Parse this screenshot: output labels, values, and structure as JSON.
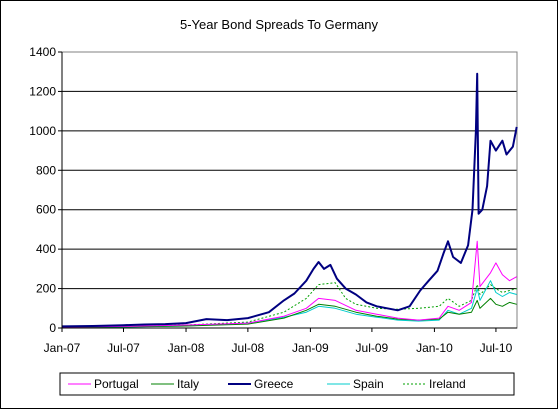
{
  "chart_data": {
    "type": "line",
    "title": "5-Year Bond Spreads To Germany",
    "xlabel": "",
    "ylabel": "",
    "ylim": [
      0,
      1400
    ],
    "yticks": [
      0,
      200,
      400,
      600,
      800,
      1000,
      1200,
      1400
    ],
    "xlim": [
      "2007-01-01",
      "2010-09-01"
    ],
    "xticks": [
      {
        "date": "2007-01-01",
        "label": "Jan-07"
      },
      {
        "date": "2007-07-01",
        "label": "Jul-07"
      },
      {
        "date": "2008-01-01",
        "label": "Jan-08"
      },
      {
        "date": "2008-07-01",
        "label": "Jul-08"
      },
      {
        "date": "2009-01-01",
        "label": "Jan-09"
      },
      {
        "date": "2009-07-01",
        "label": "Jul-09"
      },
      {
        "date": "2010-01-01",
        "label": "Jan-10"
      },
      {
        "date": "2010-07-01",
        "label": "Jul-10"
      }
    ],
    "grid": "horizontal",
    "legend": "bottom",
    "series": [
      {
        "name": "Greece",
        "color": "#000080",
        "dash": "solid",
        "width": 2,
        "points": [
          [
            "2007-01-01",
            8
          ],
          [
            "2007-04-01",
            10
          ],
          [
            "2007-07-01",
            14
          ],
          [
            "2007-09-01",
            18
          ],
          [
            "2007-11-01",
            20
          ],
          [
            "2008-01-01",
            25
          ],
          [
            "2008-03-01",
            45
          ],
          [
            "2008-05-01",
            40
          ],
          [
            "2008-07-01",
            50
          ],
          [
            "2008-09-01",
            80
          ],
          [
            "2008-10-15",
            140
          ],
          [
            "2008-11-15",
            175
          ],
          [
            "2008-12-20",
            240
          ],
          [
            "2009-01-10",
            300
          ],
          [
            "2009-01-25",
            335
          ],
          [
            "2009-02-10",
            300
          ],
          [
            "2009-03-01",
            320
          ],
          [
            "2009-03-20",
            250
          ],
          [
            "2009-04-15",
            200
          ],
          [
            "2009-05-15",
            170
          ],
          [
            "2009-06-15",
            130
          ],
          [
            "2009-07-15",
            110
          ],
          [
            "2009-08-15",
            100
          ],
          [
            "2009-09-15",
            90
          ],
          [
            "2009-10-20",
            110
          ],
          [
            "2009-11-20",
            190
          ],
          [
            "2009-12-15",
            240
          ],
          [
            "2010-01-10",
            290
          ],
          [
            "2010-01-28",
            380
          ],
          [
            "2010-02-10",
            440
          ],
          [
            "2010-02-25",
            360
          ],
          [
            "2010-03-20",
            330
          ],
          [
            "2010-04-10",
            420
          ],
          [
            "2010-04-23",
            600
          ],
          [
            "2010-05-03",
            1000
          ],
          [
            "2010-05-07",
            1290
          ],
          [
            "2010-05-11",
            580
          ],
          [
            "2010-05-22",
            600
          ],
          [
            "2010-06-05",
            720
          ],
          [
            "2010-06-15",
            950
          ],
          [
            "2010-07-01",
            900
          ],
          [
            "2010-07-20",
            950
          ],
          [
            "2010-08-01",
            880
          ],
          [
            "2010-08-20",
            920
          ],
          [
            "2010-08-31",
            1020
          ]
        ]
      },
      {
        "name": "Portugal",
        "color": "#ff00ff",
        "dash": "solid",
        "width": 1,
        "points": [
          [
            "2007-01-01",
            5
          ],
          [
            "2007-07-01",
            8
          ],
          [
            "2008-01-01",
            15
          ],
          [
            "2008-07-01",
            25
          ],
          [
            "2008-10-15",
            60
          ],
          [
            "2008-12-20",
            100
          ],
          [
            "2009-01-25",
            150
          ],
          [
            "2009-03-15",
            140
          ],
          [
            "2009-05-15",
            90
          ],
          [
            "2009-07-15",
            70
          ],
          [
            "2009-09-15",
            50
          ],
          [
            "2009-11-15",
            40
          ],
          [
            "2010-01-15",
            50
          ],
          [
            "2010-02-10",
            110
          ],
          [
            "2010-03-15",
            90
          ],
          [
            "2010-04-20",
            130
          ],
          [
            "2010-05-07",
            440
          ],
          [
            "2010-05-15",
            210
          ],
          [
            "2010-06-15",
            280
          ],
          [
            "2010-07-01",
            330
          ],
          [
            "2010-07-20",
            270
          ],
          [
            "2010-08-10",
            240
          ],
          [
            "2010-08-31",
            260
          ]
        ]
      },
      {
        "name": "Italy",
        "color": "#008000",
        "dash": "solid",
        "width": 1,
        "points": [
          [
            "2007-01-01",
            5
          ],
          [
            "2007-07-01",
            6
          ],
          [
            "2008-01-01",
            10
          ],
          [
            "2008-07-01",
            20
          ],
          [
            "2008-10-15",
            50
          ],
          [
            "2008-12-20",
            90
          ],
          [
            "2009-01-25",
            120
          ],
          [
            "2009-03-15",
            110
          ],
          [
            "2009-05-15",
            80
          ],
          [
            "2009-07-15",
            60
          ],
          [
            "2009-09-15",
            45
          ],
          [
            "2009-11-15",
            40
          ],
          [
            "2010-01-15",
            45
          ],
          [
            "2010-02-10",
            80
          ],
          [
            "2010-03-15",
            70
          ],
          [
            "2010-04-20",
            80
          ],
          [
            "2010-05-07",
            140
          ],
          [
            "2010-05-15",
            100
          ],
          [
            "2010-06-15",
            150
          ],
          [
            "2010-07-01",
            120
          ],
          [
            "2010-07-20",
            110
          ],
          [
            "2010-08-10",
            130
          ],
          [
            "2010-08-31",
            120
          ]
        ]
      },
      {
        "name": "Spain",
        "color": "#00cccc",
        "dash": "solid",
        "width": 1,
        "points": [
          [
            "2007-01-01",
            3
          ],
          [
            "2007-07-01",
            5
          ],
          [
            "2008-01-01",
            10
          ],
          [
            "2008-07-01",
            25
          ],
          [
            "2008-10-15",
            55
          ],
          [
            "2008-12-20",
            80
          ],
          [
            "2009-01-25",
            110
          ],
          [
            "2009-03-15",
            100
          ],
          [
            "2009-05-15",
            70
          ],
          [
            "2009-07-15",
            55
          ],
          [
            "2009-09-15",
            40
          ],
          [
            "2009-11-15",
            35
          ],
          [
            "2010-01-15",
            40
          ],
          [
            "2010-02-10",
            90
          ],
          [
            "2010-03-15",
            70
          ],
          [
            "2010-04-20",
            100
          ],
          [
            "2010-05-07",
            200
          ],
          [
            "2010-05-15",
            140
          ],
          [
            "2010-06-15",
            240
          ],
          [
            "2010-07-01",
            180
          ],
          [
            "2010-07-20",
            160
          ],
          [
            "2010-08-10",
            180
          ],
          [
            "2010-08-31",
            170
          ]
        ]
      },
      {
        "name": "Ireland",
        "color": "#00a000",
        "dash": "dotted",
        "width": 1,
        "points": [
          [
            "2007-01-01",
            3
          ],
          [
            "2007-07-01",
            6
          ],
          [
            "2008-01-01",
            15
          ],
          [
            "2008-07-01",
            30
          ],
          [
            "2008-10-15",
            80
          ],
          [
            "2008-12-20",
            150
          ],
          [
            "2009-01-25",
            220
          ],
          [
            "2009-03-15",
            230
          ],
          [
            "2009-04-15",
            150
          ],
          [
            "2009-05-15",
            120
          ],
          [
            "2009-07-15",
            100
          ],
          [
            "2009-09-15",
            95
          ],
          [
            "2009-11-15",
            100
          ],
          [
            "2010-01-15",
            110
          ],
          [
            "2010-02-10",
            150
          ],
          [
            "2010-03-15",
            110
          ],
          [
            "2010-04-20",
            140
          ],
          [
            "2010-05-07",
            220
          ],
          [
            "2010-05-15",
            170
          ],
          [
            "2010-06-15",
            220
          ],
          [
            "2010-07-01",
            200
          ],
          [
            "2010-07-20",
            180
          ],
          [
            "2010-08-10",
            190
          ],
          [
            "2010-08-31",
            200
          ]
        ]
      }
    ],
    "legend_order": [
      "Portugal",
      "Italy",
      "Greece",
      "Spain",
      "Ireland"
    ]
  }
}
